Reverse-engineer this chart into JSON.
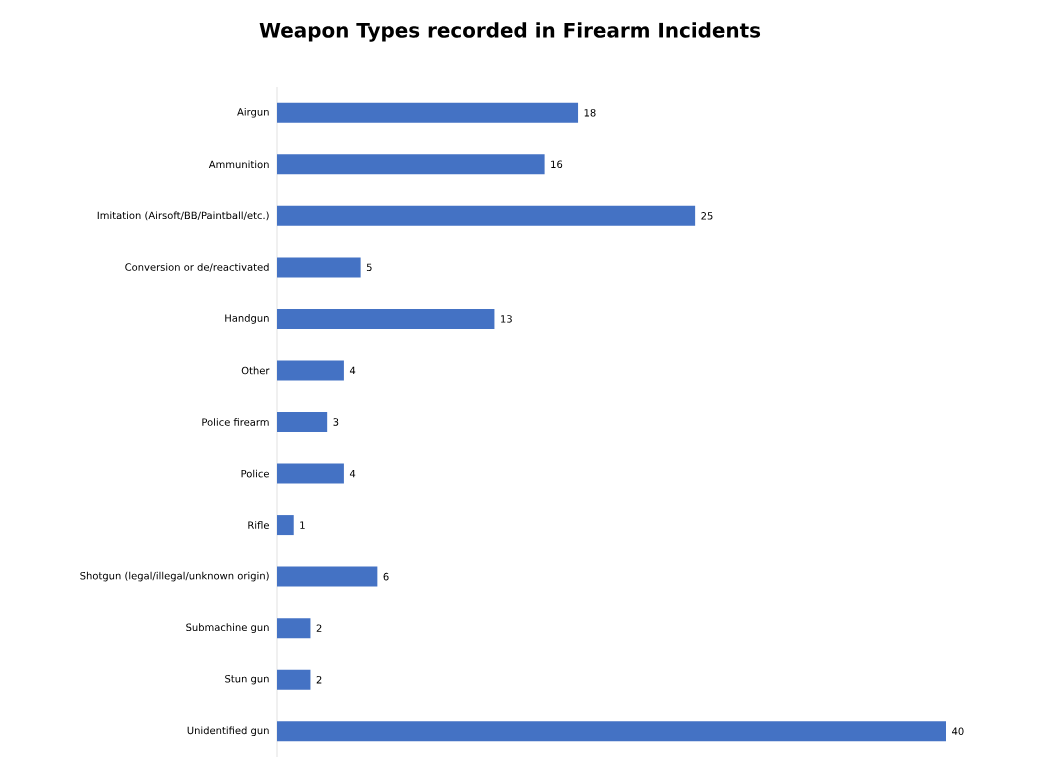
{
  "chart_data": {
    "type": "bar",
    "orientation": "horizontal",
    "title": "Weapon Types recorded in Firearm Incidents",
    "categories": [
      "Airgun",
      "Ammunition",
      "Imitation (Airsoft/BB/Paintball/etc.)",
      "Conversion or de/reactivated",
      "Handgun",
      "Other",
      "Police firearm",
      "Police",
      "Rifle",
      "Shotgun (legal/illegal/unknown origin)",
      "Submachine gun",
      "Stun gun",
      "Unidentified gun"
    ],
    "values": [
      18,
      16,
      25,
      5,
      13,
      4,
      3,
      4,
      1,
      6,
      2,
      2,
      40
    ],
    "color": "#4472c4",
    "xlim": [
      0,
      40
    ],
    "data_labels": true,
    "tick_labels": "y",
    "grid": false
  }
}
